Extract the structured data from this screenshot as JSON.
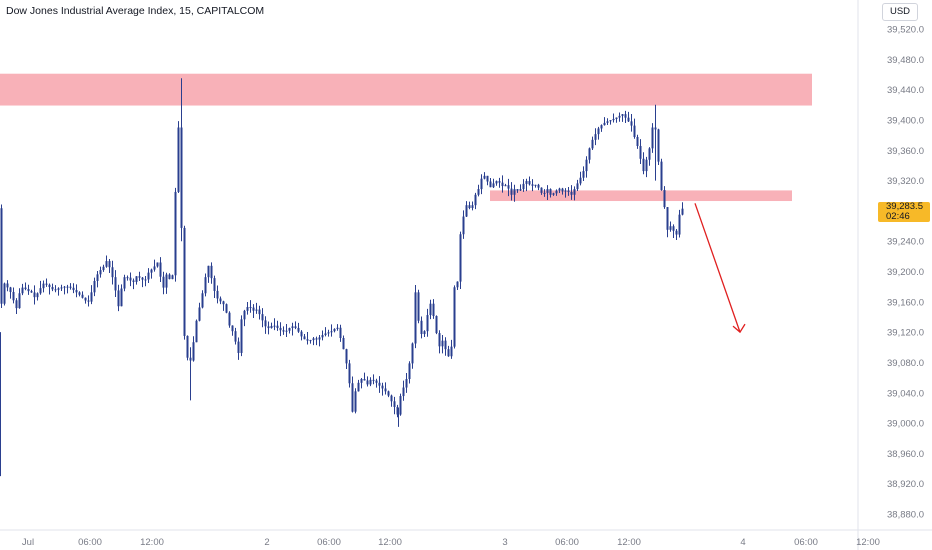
{
  "header": {
    "title": "Dow Jones Industrial Average Index, 15, CAPITALCOM",
    "currency": "USD"
  },
  "last_price": {
    "value": "39,283.5",
    "countdown": "02:46",
    "color": "#f7b928"
  },
  "colors": {
    "candle": "#2a3f8f",
    "zone": "#f7a8b0",
    "arrow": "#e02020",
    "axis_text": "#787b86"
  },
  "chart_data": {
    "type": "candlestick",
    "title": "Dow Jones Industrial Average Index, 15, CAPITALCOM",
    "y_axis": {
      "ticks": [
        39520,
        39480,
        39440,
        39400,
        39360,
        39320,
        39280,
        39240,
        39200,
        39160,
        39120,
        39080,
        39040,
        39000,
        38960,
        38920,
        38880
      ],
      "tick_labels": [
        "39,520.0",
        "39,480.0",
        "39,440.0",
        "39,400.0",
        "39,360.0",
        "39,320.0",
        "39,280.0",
        "39,240.0",
        "39,200.0",
        "39,160.0",
        "39,120.0",
        "39,080.0",
        "39,040.0",
        "39,000.0",
        "38,960.0",
        "38,920.0",
        "38,880.0"
      ],
      "range": [
        38866,
        39546
      ]
    },
    "x_axis": {
      "ticks": [
        "Jul",
        "06:00",
        "12:00",
        "2",
        "06:00",
        "12:00",
        "3",
        "06:00",
        "12:00",
        "4",
        "06:00",
        "12:00"
      ]
    },
    "price_path": [
      [
        0,
        38935
      ],
      [
        1,
        39120
      ],
      [
        3,
        39170
      ],
      [
        5,
        39185
      ],
      [
        8,
        39180
      ],
      [
        12,
        39172
      ],
      [
        15,
        39160
      ],
      [
        18,
        39150
      ],
      [
        20,
        39170
      ],
      [
        24,
        39180
      ],
      [
        28,
        39175
      ],
      [
        33,
        39172
      ],
      [
        36,
        39165
      ],
      [
        40,
        39175
      ],
      [
        45,
        39185
      ],
      [
        50,
        39180
      ],
      [
        55,
        39175
      ],
      [
        60,
        39178
      ],
      [
        65,
        39180
      ],
      [
        70,
        39180
      ],
      [
        75,
        39175
      ],
      [
        80,
        39170
      ],
      [
        86,
        39162
      ],
      [
        90,
        39160
      ],
      [
        93,
        39175
      ],
      [
        96,
        39190
      ],
      [
        100,
        39200
      ],
      [
        104,
        39205
      ],
      [
        108,
        39215
      ],
      [
        112,
        39200
      ],
      [
        116,
        39180
      ],
      [
        119,
        39150
      ],
      [
        122,
        39175
      ],
      [
        126,
        39195
      ],
      [
        130,
        39190
      ],
      [
        134,
        39185
      ],
      [
        138,
        39195
      ],
      [
        142,
        39190
      ],
      [
        146,
        39188
      ],
      [
        150,
        39200
      ],
      [
        155,
        39205
      ],
      [
        158,
        39215
      ],
      [
        162,
        39190
      ],
      [
        166,
        39172
      ],
      [
        169,
        39220
      ],
      [
        172,
        39160
      ],
      [
        175,
        39230
      ],
      [
        177,
        39330
      ],
      [
        179,
        39420
      ],
      [
        180,
        39360
      ],
      [
        181,
        39450
      ],
      [
        182,
        39300
      ],
      [
        184,
        39130
      ],
      [
        186,
        39110
      ],
      [
        188,
        39095
      ],
      [
        190,
        39060
      ],
      [
        192,
        39090
      ],
      [
        195,
        39110
      ],
      [
        198,
        39140
      ],
      [
        202,
        39160
      ],
      [
        206,
        39190
      ],
      [
        210,
        39210
      ],
      [
        214,
        39180
      ],
      [
        218,
        39165
      ],
      [
        222,
        39160
      ],
      [
        226,
        39155
      ],
      [
        230,
        39130
      ],
      [
        234,
        39120
      ],
      [
        238,
        39100
      ],
      [
        240,
        39090
      ],
      [
        242,
        39135
      ],
      [
        246,
        39150
      ],
      [
        250,
        39155
      ],
      [
        254,
        39148
      ],
      [
        258,
        39150
      ],
      [
        262,
        39140
      ],
      [
        266,
        39128
      ],
      [
        270,
        39125
      ],
      [
        274,
        39130
      ],
      [
        278,
        39126
      ],
      [
        282,
        39122
      ],
      [
        286,
        39120
      ],
      [
        290,
        39125
      ],
      [
        294,
        39128
      ],
      [
        298,
        39124
      ],
      [
        302,
        39115
      ],
      [
        306,
        39110
      ],
      [
        310,
        39108
      ],
      [
        314,
        39112
      ],
      [
        318,
        39110
      ],
      [
        322,
        39115
      ],
      [
        326,
        39118
      ],
      [
        330,
        39120
      ],
      [
        334,
        39122
      ],
      [
        338,
        39128
      ],
      [
        342,
        39110
      ],
      [
        346,
        39090
      ],
      [
        350,
        39060
      ],
      [
        352,
        39030
      ],
      [
        354,
        39010
      ],
      [
        356,
        39040
      ],
      [
        360,
        39055
      ],
      [
        364,
        39060
      ],
      [
        368,
        39050
      ],
      [
        372,
        39058
      ],
      [
        376,
        39055
      ],
      [
        380,
        39050
      ],
      [
        384,
        39045
      ],
      [
        388,
        39040
      ],
      [
        392,
        39030
      ],
      [
        396,
        39020
      ],
      [
        398,
        39005
      ],
      [
        400,
        39030
      ],
      [
        404,
        39045
      ],
      [
        408,
        39060
      ],
      [
        412,
        39090
      ],
      [
        414,
        39110
      ],
      [
        416,
        39180
      ],
      [
        418,
        39150
      ],
      [
        420,
        39130
      ],
      [
        424,
        39110
      ],
      [
        428,
        39140
      ],
      [
        432,
        39160
      ],
      [
        436,
        39130
      ],
      [
        440,
        39100
      ],
      [
        444,
        39110
      ],
      [
        448,
        39090
      ],
      [
        452,
        39085
      ],
      [
        455,
        39180
      ],
      [
        458,
        39175
      ],
      [
        461,
        39245
      ],
      [
        464,
        39270
      ],
      [
        468,
        39290
      ],
      [
        472,
        39280
      ],
      [
        476,
        39300
      ],
      [
        480,
        39310
      ],
      [
        484,
        39330
      ],
      [
        488,
        39320
      ],
      [
        492,
        39310
      ],
      [
        496,
        39320
      ],
      [
        500,
        39318
      ],
      [
        504,
        39312
      ],
      [
        508,
        39315
      ],
      [
        512,
        39300
      ],
      [
        516,
        39310
      ],
      [
        520,
        39305
      ],
      [
        524,
        39315
      ],
      [
        528,
        39320
      ],
      [
        532,
        39312
      ],
      [
        536,
        39315
      ],
      [
        540,
        39310
      ],
      [
        544,
        39300
      ],
      [
        548,
        39310
      ],
      [
        552,
        39300
      ],
      [
        556,
        39305
      ],
      [
        560,
        39310
      ],
      [
        564,
        39305
      ],
      [
        568,
        39308
      ],
      [
        572,
        39300
      ],
      [
        576,
        39310
      ],
      [
        580,
        39320
      ],
      [
        584,
        39330
      ],
      [
        588,
        39350
      ],
      [
        592,
        39370
      ],
      [
        596,
        39380
      ],
      [
        600,
        39390
      ],
      [
        604,
        39395
      ],
      [
        608,
        39398
      ],
      [
        612,
        39400
      ],
      [
        616,
        39402
      ],
      [
        620,
        39405
      ],
      [
        624,
        39408
      ],
      [
        628,
        39400
      ],
      [
        632,
        39395
      ],
      [
        636,
        39375
      ],
      [
        640,
        39360
      ],
      [
        644,
        39330
      ],
      [
        648,
        39350
      ],
      [
        652,
        39370
      ],
      [
        655,
        39410
      ],
      [
        657,
        39380
      ],
      [
        659,
        39350
      ],
      [
        661,
        39330
      ],
      [
        663,
        39300
      ],
      [
        665,
        39290
      ],
      [
        667,
        39270
      ],
      [
        669,
        39250
      ],
      [
        671,
        39258
      ],
      [
        673,
        39265
      ],
      [
        675,
        39250
      ],
      [
        677,
        39245
      ],
      [
        679,
        39260
      ],
      [
        681,
        39280
      ],
      [
        684,
        39283.5
      ]
    ],
    "zones": [
      {
        "name": "upper-resistance-zone",
        "y_from": 39419,
        "y_to": 39461
      },
      {
        "name": "mid-resistance-zone",
        "y_from": 39293,
        "y_to": 39307
      }
    ],
    "arrow": {
      "from_y": 39290,
      "to_y": 39120
    },
    "last_value": 39283.5
  }
}
